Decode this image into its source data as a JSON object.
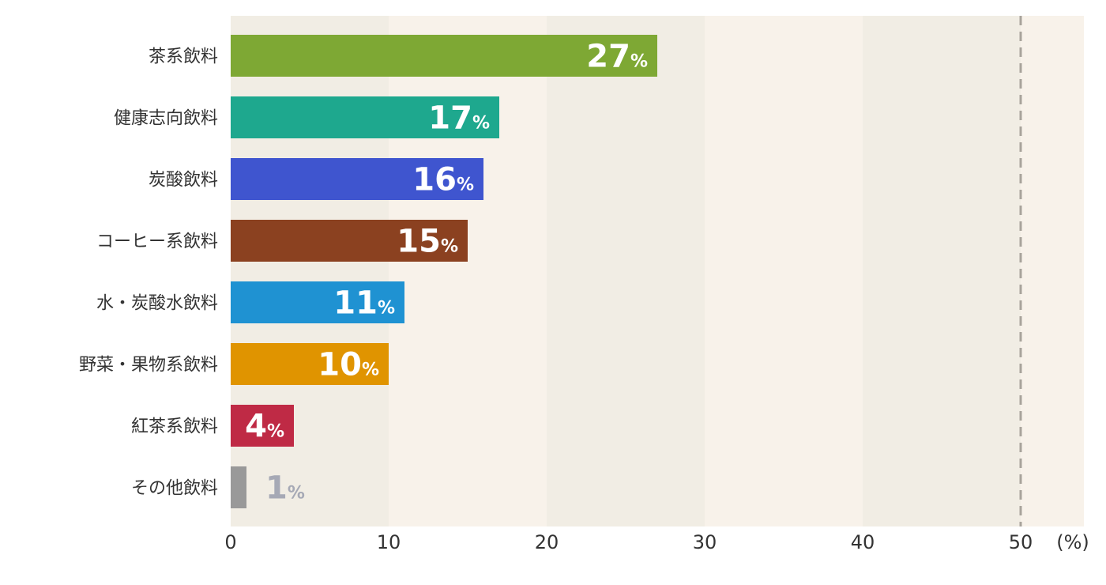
{
  "chart_data": {
    "type": "bar",
    "orientation": "horizontal",
    "categories": [
      "茶系飲料",
      "健康志向飲料",
      "炭酸飲料",
      "コーヒー系飲料",
      "水・炭酸水飲料",
      "野菜・果物系飲料",
      "紅茶系飲料",
      "その他飲料"
    ],
    "values": [
      27,
      17,
      16,
      15,
      11,
      10,
      4,
      1
    ],
    "value_suffix": "%",
    "bar_colors": [
      "#7ea834",
      "#1ea88e",
      "#3f55cf",
      "#8b4120",
      "#1f92d2",
      "#e09400",
      "#bf2a45",
      "#999999"
    ],
    "xlim": [
      0,
      54
    ],
    "x_ticks": [
      0,
      10,
      20,
      30,
      40,
      50
    ],
    "x_unit": "(%)",
    "reference_line": 50,
    "grid": false
  }
}
